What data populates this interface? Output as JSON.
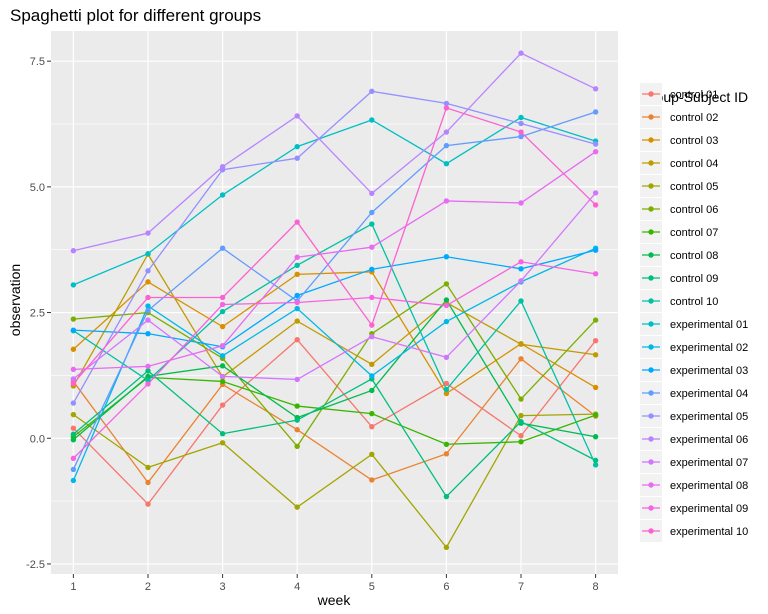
{
  "chart_data": {
    "type": "line",
    "title": "Spaghetti plot for different groups",
    "xlabel": "week",
    "ylabel": "observation",
    "x": [
      1,
      2,
      3,
      4,
      5,
      6,
      7,
      8
    ],
    "x_ticks": [
      "1",
      "2",
      "3",
      "4",
      "5",
      "6",
      "7",
      "8"
    ],
    "xlim": [
      0.7,
      8.3
    ],
    "y_ticks": [
      -2.5,
      0,
      2.5,
      5,
      7.5
    ],
    "y_tick_labels": [
      "-2.5",
      "0.0",
      "2.5",
      "5.0",
      "7.5"
    ],
    "ylim": [
      -2.7,
      8.1
    ],
    "grid": true,
    "legend_position": "right",
    "legend_title": "Group-Subject ID",
    "series": [
      {
        "name": "control 01",
        "color": "#F8766D",
        "values": [
          0.2,
          -1.31,
          0.66,
          1.96,
          0.23,
          1.09,
          0.05,
          1.94
        ]
      },
      {
        "name": "control 02",
        "color": "#EA8331",
        "values": [
          1.13,
          -0.88,
          1.07,
          0.17,
          -0.83,
          -0.31,
          1.58,
          0.44
        ]
      },
      {
        "name": "control 03",
        "color": "#D89000",
        "values": [
          1.77,
          3.11,
          2.22,
          3.26,
          3.31,
          0.89,
          1.88,
          1.01
        ]
      },
      {
        "name": "control 04",
        "color": "#C09B00",
        "values": [
          1.04,
          3.66,
          1.22,
          2.33,
          1.47,
          2.7,
          1.87,
          1.66
        ]
      },
      {
        "name": "control 05",
        "color": "#A3A500",
        "values": [
          0.47,
          -0.58,
          -0.09,
          -1.37,
          -0.32,
          -2.17,
          0.45,
          0.48
        ]
      },
      {
        "name": "control 06",
        "color": "#7CAE00",
        "values": [
          2.37,
          2.5,
          1.59,
          -0.16,
          2.08,
          3.07,
          0.78,
          2.35
        ]
      },
      {
        "name": "control 07",
        "color": "#39B600",
        "values": [
          0.03,
          1.21,
          1.13,
          0.64,
          0.49,
          -0.12,
          -0.07,
          0.46
        ]
      },
      {
        "name": "control 08",
        "color": "#00BB4E",
        "values": [
          -0.03,
          1.23,
          1.44,
          0.41,
          0.95,
          2.75,
          0.3,
          0.03
        ]
      },
      {
        "name": "control 09",
        "color": "#00BF7D",
        "values": [
          0.08,
          1.34,
          0.09,
          0.36,
          1.18,
          -1.16,
          0.33,
          -0.44
        ]
      },
      {
        "name": "control 10",
        "color": "#00C1A3",
        "values": [
          2.14,
          1.15,
          2.52,
          3.44,
          4.26,
          0.97,
          2.73,
          -0.53
        ]
      },
      {
        "name": "experimental 01",
        "color": "#00BFC4",
        "values": [
          3.05,
          3.67,
          4.84,
          5.8,
          6.33,
          5.46,
          6.38,
          5.91
        ]
      },
      {
        "name": "experimental 02",
        "color": "#00B8E7",
        "values": [
          -0.84,
          2.63,
          1.64,
          2.58,
          1.24,
          2.32,
          3.11,
          3.78
        ]
      },
      {
        "name": "experimental 03",
        "color": "#00A9FF",
        "values": [
          2.15,
          2.08,
          1.82,
          2.84,
          3.36,
          3.61,
          3.37,
          3.74
        ]
      },
      {
        "name": "experimental 04",
        "color": "#619CFF",
        "values": [
          -0.62,
          2.54,
          3.78,
          2.73,
          4.49,
          5.82,
          6.0,
          6.49
        ]
      },
      {
        "name": "experimental 05",
        "color": "#9590FF",
        "values": [
          0.7,
          3.33,
          5.34,
          5.57,
          6.9,
          6.66,
          6.26,
          5.85
        ]
      },
      {
        "name": "experimental 06",
        "color": "#B983FF",
        "values": [
          3.73,
          4.08,
          5.4,
          6.41,
          4.87,
          6.09,
          7.66,
          6.95
        ]
      },
      {
        "name": "experimental 07",
        "color": "#D376FF",
        "values": [
          1.18,
          2.35,
          1.23,
          1.17,
          2.02,
          1.61,
          3.13,
          4.88
        ]
      },
      {
        "name": "experimental 08",
        "color": "#E76BF3",
        "values": [
          1.37,
          1.43,
          1.84,
          3.6,
          3.8,
          4.72,
          4.68,
          5.7
        ]
      },
      {
        "name": "experimental 09",
        "color": "#F564E3",
        "values": [
          -0.4,
          1.08,
          2.66,
          2.7,
          2.8,
          2.64,
          3.51,
          3.27
        ]
      },
      {
        "name": "experimental 10",
        "color": "#FD61D1",
        "values": [
          1.09,
          2.8,
          2.8,
          4.3,
          2.25,
          6.57,
          6.09,
          4.64
        ]
      }
    ]
  }
}
